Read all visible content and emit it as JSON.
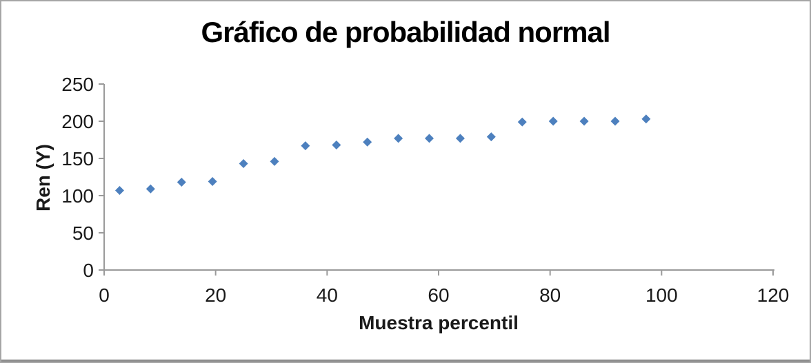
{
  "chart_data": {
    "type": "scatter",
    "title": "Gráfico de probabilidad normal",
    "xlabel": "Muestra percentil",
    "ylabel": "Ren (Y)",
    "xlim": [
      0,
      120
    ],
    "ylim": [
      0,
      250
    ],
    "xticks": [
      0,
      20,
      40,
      60,
      80,
      100,
      120
    ],
    "yticks": [
      0,
      50,
      100,
      150,
      200,
      250
    ],
    "grid": false,
    "legend": false,
    "marker": "diamond",
    "colors": {
      "marker": "#4d80be",
      "axis": "#9a9a9a",
      "tick_label": "#1a1a1a",
      "title": "#000000",
      "frame_border": "#a6a6a6",
      "frame_border_bottom": "#8c8c8c"
    },
    "series": [
      {
        "x": [
          2.78,
          8.33,
          13.89,
          19.44,
          25.0,
          30.56,
          36.11,
          41.67,
          47.22,
          52.78,
          58.33,
          63.89,
          69.44,
          75.0,
          80.56,
          86.11,
          91.67,
          97.22
        ],
        "y": [
          107,
          109,
          118,
          119,
          143,
          146,
          167,
          168,
          172,
          177,
          177,
          177,
          179,
          199,
          200,
          200,
          200,
          203
        ]
      }
    ]
  }
}
